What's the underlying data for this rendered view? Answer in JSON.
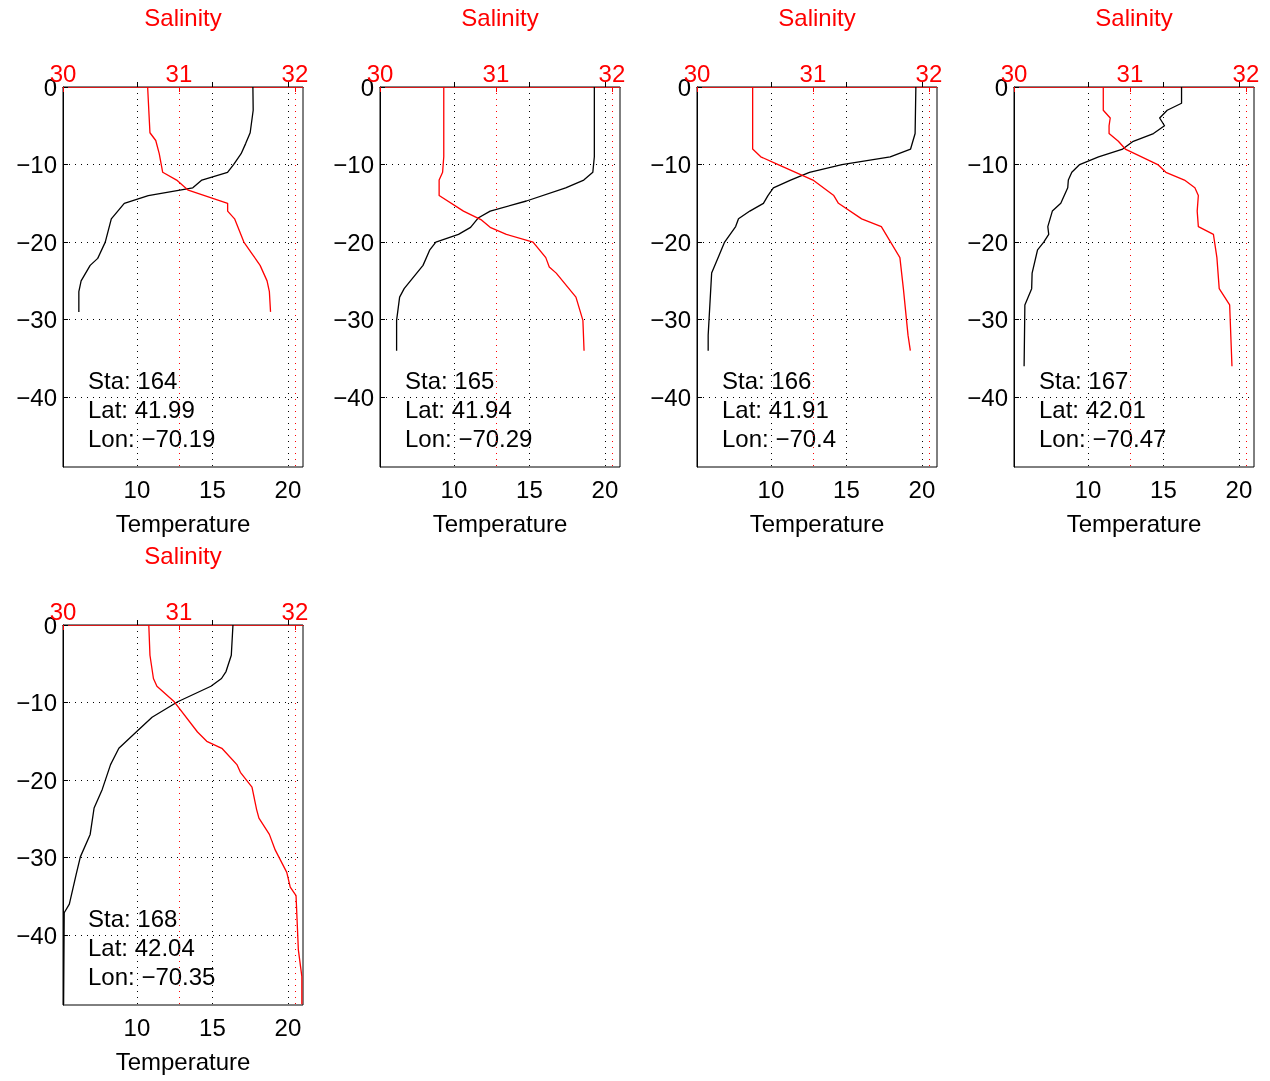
{
  "chart_data": [
    {
      "type": "line",
      "x2label": "Salinity",
      "xlabel": "Temperature",
      "xlim": [
        5.1,
        21.0
      ],
      "xticks": [
        10,
        15,
        20
      ],
      "x2lim": [
        30,
        32.07
      ],
      "x2ticks": [
        30,
        31,
        32
      ],
      "ylim": [
        -49,
        0
      ],
      "yticks": [
        0,
        -10,
        -20,
        -30,
        -40
      ],
      "grid": true,
      "line_style": "solid",
      "marker": "none",
      "annotations": [
        "Sta: 164",
        "Lat: 41.99",
        "Lon: −70.19"
      ],
      "series": [
        {
          "color": "#000000",
          "x": [
            17.68,
            17.7,
            17.5,
            17.2,
            16.9,
            16.4,
            16.0,
            14.3,
            13.7,
            10.75,
            9.16,
            8.3,
            7.9,
            7.4,
            6.9,
            6.3,
            6.15,
            6.15
          ],
          "values": [
            0,
            -3,
            -5.9,
            -7.3,
            -8.6,
            -10,
            -11,
            -12,
            -13,
            -14,
            -15,
            -17,
            -20,
            -22.1,
            -23,
            -25,
            -26.4,
            -29
          ]
        },
        {
          "color": "#ff0000",
          "axis": "x2",
          "x": [
            30.73,
            30.74,
            30.75,
            30.8,
            30.83,
            30.86,
            30.98,
            31.08,
            31.42,
            31.42,
            31.48,
            31.56,
            31.7,
            31.76,
            31.78,
            31.79
          ],
          "values": [
            0,
            -3,
            -5.9,
            -6.9,
            -8.6,
            -11,
            -12,
            -13.3,
            -15,
            -16,
            -17,
            -20,
            -23,
            -25,
            -26.4,
            -29
          ]
        }
      ]
    },
    {
      "type": "line",
      "x2label": "Salinity",
      "xlabel": "Temperature",
      "xlim": [
        5.1,
        21.0
      ],
      "xticks": [
        10,
        15,
        20
      ],
      "x2lim": [
        30,
        32.07
      ],
      "x2ticks": [
        30,
        31,
        32
      ],
      "ylim": [
        -49,
        0
      ],
      "yticks": [
        0,
        -10,
        -20,
        -30,
        -40
      ],
      "grid": true,
      "line_style": "solid",
      "marker": "none",
      "annotations": [
        "Sta: 165",
        "Lat: 41.94",
        "Lon: −70.29"
      ],
      "series": [
        {
          "color": "#000000",
          "x": [
            19.3,
            19.3,
            19.2,
            18.6,
            17.4,
            14.8,
            12.4,
            11.6,
            11.1,
            10.3,
            8.8,
            8.4,
            7.95,
            6.7,
            6.4,
            6.2,
            6.2
          ],
          "values": [
            0,
            -9,
            -11,
            -12,
            -13,
            -14.7,
            -16,
            -16.9,
            -18.1,
            -19,
            -20,
            -21,
            -23,
            -26,
            -27.1,
            -30.1,
            -34
          ]
        },
        {
          "color": "#ff0000",
          "axis": "x2",
          "x": [
            30.55,
            30.55,
            30.54,
            30.51,
            30.51,
            30.51,
            30.72,
            30.87,
            30.95,
            31.09,
            31.32,
            31.43,
            31.46,
            31.52,
            31.69,
            31.75,
            31.76
          ],
          "values": [
            0,
            -9,
            -11,
            -12,
            -13,
            -14,
            -16,
            -17.1,
            -18.1,
            -19,
            -20,
            -22,
            -23.2,
            -24,
            -27.1,
            -30.1,
            -34
          ]
        }
      ]
    },
    {
      "type": "line",
      "x2label": "Salinity",
      "xlabel": "Temperature",
      "xlim": [
        5.1,
        21.0
      ],
      "xticks": [
        10,
        15,
        20
      ],
      "x2lim": [
        30,
        32.07
      ],
      "x2ticks": [
        30,
        31,
        32
      ],
      "ylim": [
        -49,
        0
      ],
      "yticks": [
        0,
        -10,
        -20,
        -30,
        -40
      ],
      "grid": true,
      "line_style": "solid",
      "marker": "none",
      "annotations": [
        "Sta: 166",
        "Lat: 41.91",
        "Lon: −70.4"
      ],
      "series": [
        {
          "color": "#000000",
          "x": [
            19.6,
            19.55,
            19.25,
            17.9,
            14.7,
            12.55,
            11.3,
            10.16,
            9.8,
            9.5,
            8.6,
            7.85,
            7.66,
            6.93,
            6.07,
            5.84,
            5.84
          ],
          "values": [
            0,
            -6,
            -8,
            -9,
            -10,
            -11,
            -12,
            -13,
            -14,
            -15,
            -16,
            -17,
            -18,
            -20,
            -24,
            -32,
            -34
          ]
        },
        {
          "color": "#ff0000",
          "axis": "x2",
          "x": [
            30.48,
            30.48,
            30.55,
            30.7,
            31.0,
            31.18,
            31.22,
            31.42,
            31.59,
            31.75,
            31.78,
            31.82,
            31.84
          ],
          "values": [
            0,
            -8,
            -9,
            -10,
            -12,
            -14,
            -15,
            -17,
            -18,
            -22,
            -26,
            -32,
            -34
          ]
        }
      ]
    },
    {
      "type": "line",
      "x2label": "Salinity",
      "xlabel": "Temperature",
      "xlim": [
        5.1,
        21.0
      ],
      "xticks": [
        10,
        15,
        20
      ],
      "x2lim": [
        30,
        32.07
      ],
      "x2ticks": [
        30,
        31,
        32
      ],
      "ylim": [
        -49,
        0
      ],
      "yticks": [
        0,
        -10,
        -20,
        -30,
        -40
      ],
      "grid": true,
      "line_style": "solid",
      "marker": "none",
      "annotations": [
        "Sta: 167",
        "Lat: 42.01",
        "Lon: −70.47"
      ],
      "series": [
        {
          "color": "#000000",
          "x": [
            16.2,
            16.2,
            15.25,
            14.75,
            15.07,
            14.34,
            13.0,
            12.3,
            10.7,
            9.45,
            8.93,
            8.7,
            8.66,
            8.2,
            7.64,
            7.34,
            7.4,
            7.07,
            6.66,
            6.3,
            6.27,
            5.82,
            5.77
          ],
          "values": [
            0,
            -2.1,
            -3,
            -4,
            -5,
            -6,
            -7,
            -8,
            -9,
            -10,
            -11,
            -12,
            -13,
            -15,
            -16,
            -18,
            -19,
            -20,
            -21,
            -24,
            -26,
            -28.1,
            -36
          ]
        },
        {
          "color": "#ff0000",
          "axis": "x2",
          "x": [
            30.77,
            30.77,
            30.83,
            30.82,
            30.82,
            30.9,
            30.96,
            31.24,
            31.31,
            31.47,
            31.56,
            31.59,
            31.58,
            31.59,
            31.72,
            31.75,
            31.77,
            31.86,
            31.88
          ],
          "values": [
            0,
            -3,
            -4,
            -5,
            -6,
            -7,
            -8,
            -10,
            -11,
            -12,
            -13,
            -14,
            -16,
            -18,
            -19,
            -22,
            -26,
            -28.1,
            -36
          ]
        }
      ]
    },
    {
      "type": "line",
      "x2label": "Salinity",
      "xlabel": "Temperature",
      "xlim": [
        5.1,
        21.0
      ],
      "xticks": [
        10,
        15,
        20
      ],
      "x2lim": [
        30,
        32.07
      ],
      "x2ticks": [
        30,
        31,
        32
      ],
      "ylim": [
        -49,
        0
      ],
      "yticks": [
        0,
        -10,
        -20,
        -30,
        -40
      ],
      "grid": true,
      "line_style": "solid",
      "marker": "none",
      "annotations": [
        "Sta: 168",
        "Lat: 42.04",
        "Lon: −70.35"
      ],
      "series": [
        {
          "color": "#000000",
          "x": [
            16.36,
            16.25,
            15.9,
            15.6,
            14.9,
            12.7,
            11.0,
            9.95,
            8.8,
            8.25,
            7.7,
            7.16,
            6.9,
            6.25,
            5.98,
            5.52,
            5.18,
            5.14
          ],
          "values": [
            0,
            -3.9,
            -6,
            -6.9,
            -7.9,
            -9.9,
            -11.9,
            -13.8,
            -15.9,
            -18,
            -21.2,
            -23.6,
            -27,
            -29.9,
            -32.1,
            -36,
            -37.1,
            -48.9
          ]
        },
        {
          "color": "#ff0000",
          "axis": "x2",
          "x": [
            30.74,
            30.75,
            30.78,
            30.81,
            30.96,
            31.16,
            31.24,
            31.37,
            31.5,
            31.53,
            31.63,
            31.67,
            31.69,
            31.78,
            31.83,
            31.93,
            31.96,
            32.01,
            32.03,
            32.06,
            32.06
          ],
          "values": [
            0,
            -3.9,
            -6.9,
            -7.9,
            -9.9,
            -13.8,
            -15,
            -15.9,
            -18,
            -19,
            -20.9,
            -23.8,
            -24.9,
            -27,
            -29,
            -31.9,
            -33.8,
            -34.9,
            -41.9,
            -45.3,
            -48.9
          ]
        }
      ]
    }
  ]
}
